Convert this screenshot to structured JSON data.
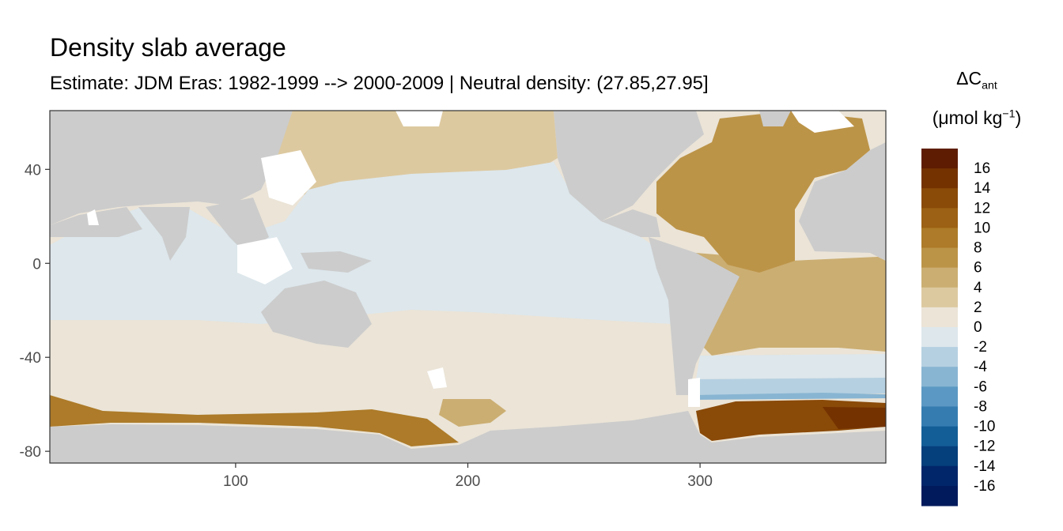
{
  "chart_data": {
    "type": "heatmap",
    "title": "Density slab average",
    "subtitle": "Estimate: JDM Eras: 1982-1999 --> 2000-2009 | Neutral density: (27.85,27.95]",
    "xlabel": "",
    "ylabel": "",
    "xlim": [
      20,
      380
    ],
    "ylim": [
      -85,
      65
    ],
    "x_ticks": [
      100,
      200,
      300
    ],
    "y_ticks": [
      40,
      0,
      -40,
      -80
    ],
    "grid": false,
    "legend_position": "right",
    "legend": {
      "title_main": "ΔC",
      "title_sub": "ant",
      "unit_prefix": "(μmol kg",
      "unit_sup": "−1",
      "unit_suffix": ")",
      "labels": [
        "16",
        "14",
        "12",
        "10",
        "8",
        "6",
        "4",
        "2",
        "0",
        "-2",
        "-4",
        "-6",
        "-8",
        "-10",
        "-12",
        "-14",
        "-16"
      ],
      "colors": [
        "#5e1d02",
        "#743201",
        "#8a4a08",
        "#9c6114",
        "#ad7b29",
        "#bc9448",
        "#cbae72",
        "#ddc9a0",
        "#ebe4d7",
        "#dde7ec",
        "#b5d0e1",
        "#88b5d2",
        "#5b98c3",
        "#357db1",
        "#145e97",
        "#053f7c",
        "#02266a",
        "#001a5c"
      ]
    },
    "colors": {
      "land": "#cccccc",
      "no_data": "#ffffff",
      "panel_border": "#333333"
    },
    "regions": [
      {
        "name": "Southern Ocean Indo-Pacific",
        "value": 1
      },
      {
        "name": "Indian Ocean",
        "value": -1
      },
      {
        "name": "North Pacific",
        "value": 1
      },
      {
        "name": "Tropical Pacific",
        "value": -1
      },
      {
        "name": "North Atlantic",
        "value": 7
      },
      {
        "name": "Tropical Atlantic",
        "value": 6
      },
      {
        "name": "South Atlantic",
        "value": 4
      },
      {
        "name": "Weddell Sea band",
        "value": -4
      },
      {
        "name": "Weddell Sea shelf",
        "value": 14
      }
    ]
  }
}
